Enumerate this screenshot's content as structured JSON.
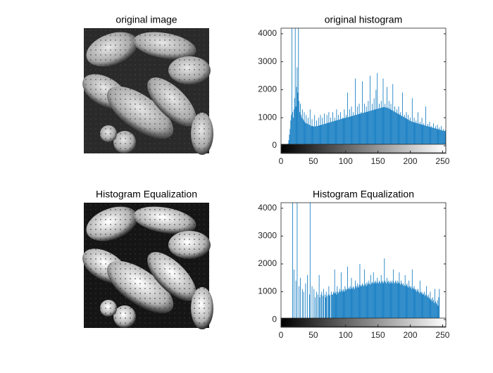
{
  "images": [
    {
      "title": "original image"
    },
    {
      "title": "Histogram Equalization"
    }
  ],
  "chart_data": [
    {
      "type": "bar",
      "title": "original histogram",
      "color": "#0072bd",
      "xlim": [
        0,
        255
      ],
      "xticks": [
        0,
        50,
        100,
        150,
        200,
        250
      ],
      "ylim": [
        -250,
        4200
      ],
      "yticks": [
        0,
        1000,
        2000,
        3000,
        4000
      ],
      "x": [
        0,
        1,
        2,
        3,
        4,
        5,
        6,
        7,
        8,
        9,
        10,
        11,
        12,
        13,
        14,
        15,
        16,
        17,
        18,
        19,
        20,
        21,
        22,
        23,
        24,
        25,
        26,
        27,
        28,
        29,
        30,
        31,
        32,
        33,
        34,
        35,
        36,
        37,
        38,
        39,
        40,
        41,
        42,
        43,
        44,
        45,
        46,
        47,
        48,
        49,
        50,
        51,
        52,
        53,
        54,
        55,
        56,
        57,
        58,
        59,
        60,
        61,
        62,
        63,
        64,
        65,
        66,
        67,
        68,
        69,
        70,
        71,
        72,
        73,
        74,
        75,
        76,
        77,
        78,
        79,
        80,
        81,
        82,
        83,
        84,
        85,
        86,
        87,
        88,
        89,
        90,
        91,
        92,
        93,
        94,
        95,
        96,
        97,
        98,
        99,
        100,
        101,
        102,
        103,
        104,
        105,
        106,
        107,
        108,
        109,
        110,
        111,
        112,
        113,
        114,
        115,
        116,
        117,
        118,
        119,
        120,
        121,
        122,
        123,
        124,
        125,
        126,
        127,
        128,
        129,
        130,
        131,
        132,
        133,
        134,
        135,
        136,
        137,
        138,
        139,
        140,
        141,
        142,
        143,
        144,
        145,
        146,
        147,
        148,
        149,
        150,
        151,
        152,
        153,
        154,
        155,
        156,
        157,
        158,
        159,
        160,
        161,
        162,
        163,
        164,
        165,
        166,
        167,
        168,
        169,
        170,
        171,
        172,
        173,
        174,
        175,
        176,
        177,
        178,
        179,
        180,
        181,
        182,
        183,
        184,
        185,
        186,
        187,
        188,
        189,
        190,
        191,
        192,
        193,
        194,
        195,
        196,
        197,
        198,
        199,
        200,
        201,
        202,
        203,
        204,
        205,
        206,
        207,
        208,
        209,
        210,
        211,
        212,
        213,
        214,
        215,
        216,
        217,
        218,
        219,
        220,
        221,
        222,
        223,
        224,
        225,
        226,
        227,
        228,
        229,
        230,
        231,
        232,
        233,
        234,
        235,
        236,
        237,
        238,
        239,
        240,
        241,
        242,
        243,
        244,
        245,
        246,
        247,
        248,
        249,
        250,
        251,
        252,
        253,
        254,
        255
      ],
      "values": [
        0,
        0,
        0,
        0,
        0,
        0,
        0,
        0,
        0,
        0,
        20,
        80,
        200,
        400,
        600,
        900,
        1100,
        4300,
        1200,
        1000,
        1300,
        1700,
        4300,
        1400,
        2100,
        2800,
        1900,
        4300,
        1600,
        1200,
        1500,
        1100,
        1000,
        1300,
        950,
        900,
        1200,
        850,
        800,
        1100,
        800,
        780,
        1000,
        760,
        740,
        1300,
        720,
        700,
        950,
        700,
        700,
        680,
        1100,
        690,
        700,
        900,
        700,
        710,
        1000,
        720,
        730,
        1100,
        740,
        750,
        1000,
        760,
        770,
        1150,
        780,
        790,
        800,
        1100,
        810,
        820,
        1200,
        830,
        840,
        1000,
        850,
        860,
        1200,
        870,
        880,
        1000,
        890,
        900,
        1300,
        910,
        920,
        1100,
        930,
        940,
        1200,
        950,
        960,
        1000,
        970,
        980,
        1300,
        990,
        1000,
        1100,
        1010,
        1900,
        1020,
        1030,
        1300,
        1040,
        1050,
        1400,
        1060,
        1070,
        1200,
        1080,
        1090,
        2400,
        1100,
        1110,
        1400,
        1120,
        1130,
        1500,
        1140,
        1150,
        1200,
        1160,
        2300,
        1170,
        1180,
        1500,
        1190,
        1200,
        1400,
        1210,
        1220,
        1600,
        1230,
        1240,
        2500,
        1250,
        1260,
        1500,
        1270,
        1280,
        1700,
        1290,
        1300,
        2000,
        1310,
        2600,
        1320,
        1330,
        1500,
        1340,
        1350,
        1600,
        1360,
        1370,
        2400,
        1380,
        1380,
        1500,
        1370,
        1360,
        2100,
        1350,
        1340,
        1600,
        1320,
        1300,
        1500,
        1280,
        1260,
        2200,
        1240,
        1220,
        1400,
        1200,
        1180,
        1300,
        1160,
        1140,
        1400,
        1120,
        1100,
        1200,
        1080,
        1060,
        1900,
        1040,
        1020,
        1100,
        1000,
        980,
        1200,
        960,
        940,
        1100,
        920,
        900,
        1000,
        880,
        860,
        1700,
        850,
        840,
        1000,
        830,
        820,
        900,
        810,
        800,
        1200,
        790,
        780,
        850,
        770,
        760,
        1000,
        750,
        740,
        800,
        730,
        720,
        1400,
        710,
        700,
        780,
        690,
        680,
        850,
        670,
        660,
        700,
        650,
        640,
        800,
        630,
        620,
        700,
        610,
        600,
        750,
        590,
        580,
        650,
        570,
        560,
        700,
        550,
        540,
        600,
        530,
        520,
        550,
        500
      ]
    },
    {
      "type": "bar",
      "title": "Histogram Equalization",
      "color": "#0072bd",
      "xlim": [
        0,
        255
      ],
      "xticks": [
        0,
        50,
        100,
        150,
        200,
        250
      ],
      "ylim": [
        -250,
        4200
      ],
      "yticks": [
        0,
        1000,
        2000,
        3000,
        4000
      ],
      "x": [
        0,
        1,
        2,
        3,
        4,
        5,
        6,
        7,
        8,
        9,
        10,
        11,
        12,
        13,
        14,
        15,
        16,
        17,
        18,
        19,
        20,
        21,
        22,
        23,
        24,
        25,
        26,
        27,
        28,
        29,
        30,
        31,
        32,
        33,
        34,
        35,
        36,
        37,
        38,
        39,
        40,
        41,
        42,
        43,
        44,
        45,
        46,
        47,
        48,
        49,
        50,
        51,
        52,
        53,
        54,
        55,
        56,
        57,
        58,
        59,
        60,
        61,
        62,
        63,
        64,
        65,
        66,
        67,
        68,
        69,
        70,
        71,
        72,
        73,
        74,
        75,
        76,
        77,
        78,
        79,
        80,
        81,
        82,
        83,
        84,
        85,
        86,
        87,
        88,
        89,
        90,
        91,
        92,
        93,
        94,
        95,
        96,
        97,
        98,
        99,
        100,
        101,
        102,
        103,
        104,
        105,
        106,
        107,
        108,
        109,
        110,
        111,
        112,
        113,
        114,
        115,
        116,
        117,
        118,
        119,
        120,
        121,
        122,
        123,
        124,
        125,
        126,
        127,
        128,
        129,
        130,
        131,
        132,
        133,
        134,
        135,
        136,
        137,
        138,
        139,
        140,
        141,
        142,
        143,
        144,
        145,
        146,
        147,
        148,
        149,
        150,
        151,
        152,
        153,
        154,
        155,
        156,
        157,
        158,
        159,
        160,
        161,
        162,
        163,
        164,
        165,
        166,
        167,
        168,
        169,
        170,
        171,
        172,
        173,
        174,
        175,
        176,
        177,
        178,
        179,
        180,
        181,
        182,
        183,
        184,
        185,
        186,
        187,
        188,
        189,
        190,
        191,
        192,
        193,
        194,
        195,
        196,
        197,
        198,
        199,
        200,
        201,
        202,
        203,
        204,
        205,
        206,
        207,
        208,
        209,
        210,
        211,
        212,
        213,
        214,
        215,
        216,
        217,
        218,
        219,
        220,
        221,
        222,
        223,
        224,
        225,
        226,
        227,
        228,
        229,
        230,
        231,
        232,
        233,
        234,
        235,
        236,
        237,
        238,
        239,
        240,
        241,
        242,
        243,
        244,
        245,
        246,
        247,
        248,
        249,
        250,
        251,
        252,
        253,
        254,
        255
      ],
      "values": [
        0,
        0,
        0,
        0,
        0,
        0,
        0,
        0,
        0,
        0,
        0,
        0,
        0,
        0,
        0,
        0,
        0,
        0,
        4300,
        0,
        1800,
        0,
        0,
        1400,
        0,
        4300,
        0,
        0,
        1200,
        0,
        1500,
        0,
        0,
        1100,
        0,
        1000,
        0,
        0,
        1300,
        0,
        0,
        1600,
        0,
        0,
        900,
        4300,
        0,
        0,
        1200,
        0,
        0,
        1100,
        0,
        800,
        0,
        1000,
        0,
        900,
        0,
        1600,
        800,
        0,
        900,
        1000,
        0,
        850,
        1100,
        0,
        900,
        800,
        1000,
        850,
        0,
        900,
        1200,
        850,
        900,
        0,
        1000,
        900,
        900,
        1000,
        950,
        1800,
        950,
        1000,
        900,
        1200,
        1000,
        950,
        1000,
        1100,
        1000,
        1700,
        1050,
        1000,
        1100,
        1050,
        1000,
        1200,
        1100,
        1050,
        1100,
        1900,
        1100,
        1150,
        1100,
        1200,
        1100,
        1500,
        1150,
        1100,
        1200,
        1150,
        1100,
        1400,
        1200,
        1150,
        1300,
        1200,
        1150,
        1250,
        2000,
        1200,
        1250,
        1200,
        1300,
        1250,
        1200,
        1800,
        1250,
        1300,
        1200,
        1350,
        1250,
        1300,
        1400,
        1300,
        1250,
        1600,
        1300,
        1350,
        1300,
        1700,
        1350,
        1300,
        1400,
        1350,
        1300,
        1500,
        1350,
        1300,
        1400,
        1350,
        1300,
        1600,
        1350,
        1400,
        1300,
        1350,
        2200,
        1400,
        1350,
        1300,
        1500,
        1350,
        1400,
        1300,
        1350,
        1400,
        1300,
        1350,
        1400,
        1300,
        1800,
        1350,
        1300,
        1400,
        1350,
        1300,
        1400,
        1300,
        1350,
        1700,
        1300,
        1250,
        1400,
        1300,
        1250,
        1300,
        1200,
        1250,
        1600,
        1200,
        1250,
        1300,
        1200,
        1150,
        1400,
        1200,
        1150,
        1200,
        1100,
        1800,
        1150,
        1100,
        1200,
        1100,
        1050,
        1100,
        1000,
        1050,
        1100,
        1000,
        950,
        1400,
        1000,
        950,
        1000,
        900,
        950,
        900,
        1000,
        850,
        900,
        1200,
        850,
        800,
        900,
        800,
        750,
        1000,
        700,
        750,
        650,
        800,
        700,
        600,
        1100,
        650,
        600,
        550,
        700,
        500,
        800,
        1100,
        0,
        0,
        0,
        0,
        0,
        0,
        0,
        0,
        0,
        0
      ]
    }
  ]
}
